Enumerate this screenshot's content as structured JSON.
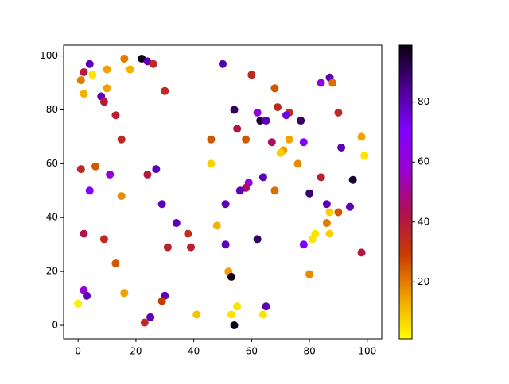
{
  "chart_data": {
    "type": "scatter",
    "x": [
      22,
      24,
      26,
      16,
      18,
      4,
      2,
      5,
      1,
      10,
      10,
      2,
      8,
      9,
      13,
      30,
      15,
      6,
      1,
      11,
      24,
      27,
      4,
      15,
      2,
      9,
      13,
      29,
      34,
      38,
      39,
      31,
      2,
      3,
      0,
      16,
      30,
      29,
      23,
      25,
      41,
      50,
      60,
      68,
      87,
      84,
      88,
      54,
      62,
      63,
      65,
      69,
      73,
      72,
      77,
      90,
      55,
      46,
      58,
      67,
      73,
      78,
      91,
      71,
      70,
      98,
      99,
      46,
      76,
      64,
      84,
      95,
      59,
      58,
      56,
      68,
      80,
      51,
      86,
      94,
      90,
      87,
      86,
      48,
      82,
      87,
      81,
      62,
      51,
      78,
      98,
      52,
      53,
      80,
      55,
      65,
      53,
      64,
      54
    ],
    "values": [
      99,
      98,
      97,
      99,
      95,
      97,
      94,
      93,
      91,
      95,
      88,
      86,
      85,
      83,
      78,
      87,
      69,
      59,
      58,
      56,
      56,
      58,
      50,
      48,
      34,
      32,
      23,
      45,
      38,
      34,
      29,
      29,
      13,
      11,
      8,
      12,
      11,
      9,
      1,
      3,
      4,
      97,
      93,
      88,
      92,
      90,
      90,
      80,
      79,
      76,
      76,
      81,
      79,
      78,
      76,
      79,
      73,
      69,
      69,
      68,
      69,
      68,
      66,
      65,
      64,
      70,
      63,
      60,
      60,
      55,
      55,
      54,
      53,
      51,
      50,
      50,
      49,
      45,
      45,
      44,
      42,
      42,
      38,
      37,
      34,
      34,
      32,
      32,
      30,
      30,
      27,
      20,
      18,
      19,
      7,
      7,
      4,
      4,
      0
    ],
    "c": [
      98,
      80,
      35,
      20,
      12,
      80,
      40,
      5,
      20,
      15,
      15,
      12,
      80,
      40,
      38,
      35,
      35,
      25,
      35,
      60,
      40,
      80,
      70,
      18,
      42,
      35,
      25,
      80,
      80,
      33,
      38,
      37,
      58,
      80,
      3,
      15,
      80,
      30,
      35,
      80,
      10,
      82,
      35,
      25,
      80,
      62,
      22,
      90,
      62,
      95,
      80,
      35,
      35,
      75,
      90,
      35,
      42,
      25,
      25,
      45,
      15,
      70,
      80,
      15,
      8,
      15,
      5,
      8,
      18,
      80,
      38,
      95,
      62,
      45,
      80,
      22,
      88,
      80,
      80,
      80,
      25,
      8,
      20,
      12,
      5,
      8,
      5,
      90,
      80,
      72,
      40,
      15,
      98,
      18,
      5,
      80,
      5,
      5,
      98
    ],
    "colormap": [
      "#ffff00",
      "#f0a000",
      "#c83c00",
      "#b01050",
      "#9a00d0",
      "#8000ff",
      "#4a0090",
      "#0a0010"
    ],
    "xlim": [
      -5,
      105
    ],
    "ylim": [
      -5,
      104
    ],
    "clim": [
      1,
      99
    ],
    "xticks": [
      0,
      20,
      40,
      60,
      80,
      100
    ],
    "yticks": [
      0,
      20,
      40,
      60,
      80,
      100
    ],
    "cticks": [
      20,
      40,
      60,
      80
    ]
  }
}
